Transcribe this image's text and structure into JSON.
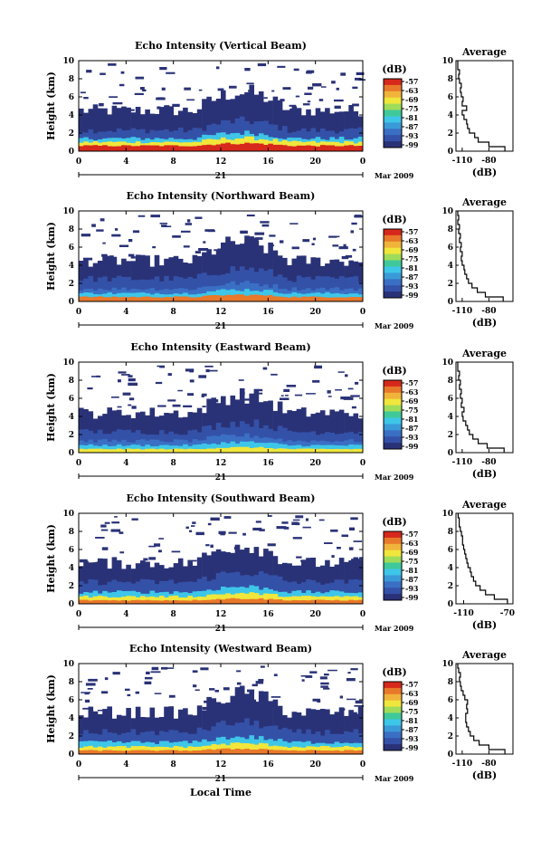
{
  "chart_data": [
    {
      "type": "heatmap",
      "title": "Echo Intensity (Vertical Beam)",
      "ylabel": "Height (km)",
      "xlabel": "",
      "x_ticks": [
        "0",
        "4",
        "8",
        "12",
        "16",
        "20",
        "0"
      ],
      "y_ticks": [
        "0",
        "2",
        "4",
        "6",
        "8",
        "10"
      ],
      "xlim": [
        0,
        24
      ],
      "ylim": [
        0,
        10
      ],
      "date_day": "21",
      "date_month": "Mar 2009",
      "colorbar": {
        "label": "(dB)",
        "ticks": [
          "-57",
          "-63",
          "-69",
          "-75",
          "-81",
          "-87",
          "-93",
          "-99"
        ]
      },
      "layers": [
        {
          "h_top": 0.6,
          "color": "#d7281c"
        },
        {
          "h_top": 1.0,
          "color": "#f0e63c"
        },
        {
          "h_top": 1.4,
          "color": "#3ec6e8"
        },
        {
          "h_top": 2.3,
          "color": "#3451a8"
        },
        {
          "h_top": 4.5,
          "color": "#2a3277"
        }
      ],
      "average": {
        "title": "Average",
        "xlabel": "(dB)",
        "xlim": [
          -117,
          -53
        ],
        "x_ticks": [
          "-110",
          "-80"
        ],
        "profile": [
          {
            "height": 0.0,
            "db": -62
          },
          {
            "height": 0.5,
            "db": -80
          },
          {
            "height": 1.0,
            "db": -92
          },
          {
            "height": 1.5,
            "db": -96
          },
          {
            "height": 2.0,
            "db": -102
          },
          {
            "height": 2.5,
            "db": -104
          },
          {
            "height": 3.0,
            "db": -105
          },
          {
            "height": 3.5,
            "db": -108
          },
          {
            "height": 4.0,
            "db": -110
          },
          {
            "height": 4.5,
            "db": -105
          },
          {
            "height": 5.0,
            "db": -110
          },
          {
            "height": 5.5,
            "db": -109
          },
          {
            "height": 6.0,
            "db": -111
          },
          {
            "height": 6.5,
            "db": -112
          },
          {
            "height": 7.0,
            "db": -111
          },
          {
            "height": 7.5,
            "db": -113
          },
          {
            "height": 8.0,
            "db": -114
          },
          {
            "height": 8.5,
            "db": -113
          },
          {
            "height": 9.0,
            "db": -115
          },
          {
            "height": 9.5,
            "db": -115
          }
        ]
      }
    },
    {
      "type": "heatmap",
      "title": "Echo Intensity (Northward Beam)",
      "ylabel": "Height (km)",
      "xlabel": "",
      "x_ticks": [
        "0",
        "4",
        "8",
        "12",
        "16",
        "20",
        "0"
      ],
      "y_ticks": [
        "0",
        "2",
        "4",
        "6",
        "8",
        "10"
      ],
      "xlim": [
        0,
        24
      ],
      "ylim": [
        0,
        10
      ],
      "date_day": "21",
      "date_month": "Mar 2009",
      "colorbar": {
        "label": "(dB)",
        "ticks": [
          "-57",
          "-63",
          "-69",
          "-75",
          "-81",
          "-87",
          "-93",
          "-99"
        ]
      },
      "layers": [
        {
          "h_top": 0.5,
          "color": "#e8782a"
        },
        {
          "h_top": 0.9,
          "color": "#3ec6e8"
        },
        {
          "h_top": 1.4,
          "color": "#3a6fc4"
        },
        {
          "h_top": 2.5,
          "color": "#3451a8"
        },
        {
          "h_top": 4.5,
          "color": "#2a3277"
        }
      ],
      "average": {
        "title": "Average",
        "xlabel": "(dB)",
        "xlim": [
          -117,
          -53
        ],
        "x_ticks": [
          "-110",
          "-80"
        ],
        "profile": [
          {
            "height": 0.0,
            "db": -64
          },
          {
            "height": 0.5,
            "db": -84
          },
          {
            "height": 1.0,
            "db": -93
          },
          {
            "height": 1.5,
            "db": -99
          },
          {
            "height": 2.0,
            "db": -103
          },
          {
            "height": 2.5,
            "db": -105
          },
          {
            "height": 3.0,
            "db": -107
          },
          {
            "height": 3.5,
            "db": -108
          },
          {
            "height": 4.0,
            "db": -110
          },
          {
            "height": 4.5,
            "db": -111
          },
          {
            "height": 5.0,
            "db": -110
          },
          {
            "height": 5.5,
            "db": -112
          },
          {
            "height": 6.0,
            "db": -111
          },
          {
            "height": 6.5,
            "db": -113
          },
          {
            "height": 7.0,
            "db": -112
          },
          {
            "height": 7.5,
            "db": -114
          },
          {
            "height": 8.0,
            "db": -113
          },
          {
            "height": 8.5,
            "db": -115
          },
          {
            "height": 9.0,
            "db": -114
          },
          {
            "height": 9.5,
            "db": -115
          }
        ]
      }
    },
    {
      "type": "heatmap",
      "title": "Echo Intensity (Eastward Beam)",
      "ylabel": "Height (km)",
      "xlabel": "",
      "x_ticks": [
        "0",
        "4",
        "8",
        "12",
        "16",
        "20",
        "0"
      ],
      "y_ticks": [
        "0",
        "2",
        "4",
        "6",
        "8",
        "10"
      ],
      "xlim": [
        0,
        24
      ],
      "ylim": [
        0,
        10
      ],
      "date_day": "21",
      "date_month": "Mar 2009",
      "colorbar": {
        "label": "(dB)",
        "ticks": [
          "-57",
          "-63",
          "-69",
          "-75",
          "-81",
          "-87",
          "-93",
          "-99"
        ]
      },
      "layers": [
        {
          "h_top": 0.4,
          "color": "#f0e63c"
        },
        {
          "h_top": 0.8,
          "color": "#3ec6e8"
        },
        {
          "h_top": 1.3,
          "color": "#3a6fc4"
        },
        {
          "h_top": 2.3,
          "color": "#3451a8"
        },
        {
          "h_top": 4.4,
          "color": "#2a3277"
        }
      ],
      "average": {
        "title": "Average",
        "xlabel": "(dB)",
        "xlim": [
          -117,
          -53
        ],
        "x_ticks": [
          "-110",
          "-80"
        ],
        "profile": [
          {
            "height": 0.0,
            "db": -63
          },
          {
            "height": 0.5,
            "db": -82
          },
          {
            "height": 1.0,
            "db": -92
          },
          {
            "height": 1.5,
            "db": -98
          },
          {
            "height": 2.0,
            "db": -102
          },
          {
            "height": 2.5,
            "db": -104
          },
          {
            "height": 3.0,
            "db": -106
          },
          {
            "height": 3.5,
            "db": -109
          },
          {
            "height": 4.0,
            "db": -110
          },
          {
            "height": 4.5,
            "db": -108
          },
          {
            "height": 5.0,
            "db": -111
          },
          {
            "height": 5.5,
            "db": -110
          },
          {
            "height": 6.0,
            "db": -112
          },
          {
            "height": 6.5,
            "db": -111
          },
          {
            "height": 7.0,
            "db": -113
          },
          {
            "height": 7.5,
            "db": -112
          },
          {
            "height": 8.0,
            "db": -114
          },
          {
            "height": 8.5,
            "db": -113
          },
          {
            "height": 9.0,
            "db": -115
          },
          {
            "height": 9.5,
            "db": -115
          }
        ]
      }
    },
    {
      "type": "heatmap",
      "title": "Echo Intensity (Southward Beam)",
      "ylabel": "Height (km)",
      "xlabel": "",
      "x_ticks": [
        "0",
        "4",
        "8",
        "12",
        "16",
        "20",
        "0"
      ],
      "y_ticks": [
        "0",
        "2",
        "4",
        "6",
        "8",
        "10"
      ],
      "xlim": [
        0,
        24
      ],
      "ylim": [
        0,
        10
      ],
      "date_day": "21",
      "date_month": "Mar 2009",
      "colorbar": {
        "label": "(dB)",
        "ticks": [
          "-57",
          "-63",
          "-69",
          "-75",
          "-81",
          "-87",
          "-93",
          "-99"
        ]
      },
      "layers": [
        {
          "h_top": 0.4,
          "color": "#e8782a"
        },
        {
          "h_top": 0.8,
          "color": "#f0e63c"
        },
        {
          "h_top": 1.3,
          "color": "#3ec6e8"
        },
        {
          "h_top": 2.4,
          "color": "#3451a8"
        },
        {
          "h_top": 4.5,
          "color": "#2a3277"
        }
      ],
      "average": {
        "title": "Average",
        "xlabel": "(dB)",
        "xlim": [
          -117,
          -65
        ],
        "x_ticks": [
          "-110",
          "-70"
        ],
        "profile": [
          {
            "height": 0.0,
            "db": -70
          },
          {
            "height": 0.5,
            "db": -82
          },
          {
            "height": 1.0,
            "db": -90
          },
          {
            "height": 1.5,
            "db": -95
          },
          {
            "height": 2.0,
            "db": -99
          },
          {
            "height": 2.5,
            "db": -101
          },
          {
            "height": 3.0,
            "db": -103
          },
          {
            "height": 3.5,
            "db": -104
          },
          {
            "height": 4.0,
            "db": -106
          },
          {
            "height": 4.5,
            "db": -107
          },
          {
            "height": 5.0,
            "db": -108
          },
          {
            "height": 5.5,
            "db": -109
          },
          {
            "height": 6.0,
            "db": -110
          },
          {
            "height": 6.5,
            "db": -111
          },
          {
            "height": 7.0,
            "db": -111
          },
          {
            "height": 7.5,
            "db": -112
          },
          {
            "height": 8.0,
            "db": -113
          },
          {
            "height": 8.5,
            "db": -114
          },
          {
            "height": 9.0,
            "db": -114
          },
          {
            "height": 9.5,
            "db": -115
          }
        ]
      }
    },
    {
      "type": "heatmap",
      "title": "Echo Intensity (Westward Beam)",
      "ylabel": "Height (km)",
      "xlabel": "Local Time",
      "x_ticks": [
        "0",
        "4",
        "8",
        "12",
        "16",
        "20",
        "0"
      ],
      "y_ticks": [
        "0",
        "2",
        "4",
        "6",
        "8",
        "10"
      ],
      "xlim": [
        0,
        24
      ],
      "ylim": [
        0,
        10
      ],
      "date_day": "21",
      "date_month": "Mar 2009",
      "colorbar": {
        "label": "(dB)",
        "ticks": [
          "-57",
          "-63",
          "-69",
          "-75",
          "-81",
          "-87",
          "-93",
          "-99"
        ]
      },
      "layers": [
        {
          "h_top": 0.4,
          "color": "#e8782a"
        },
        {
          "h_top": 0.8,
          "color": "#f0e63c"
        },
        {
          "h_top": 1.3,
          "color": "#3ec6e8"
        },
        {
          "h_top": 2.4,
          "color": "#3451a8"
        },
        {
          "h_top": 4.6,
          "color": "#2a3277"
        }
      ],
      "average": {
        "title": "Average",
        "xlabel": "(dB)",
        "xlim": [
          -117,
          -53
        ],
        "x_ticks": [
          "-110",
          "-80"
        ],
        "profile": [
          {
            "height": 0.0,
            "db": -62
          },
          {
            "height": 0.5,
            "db": -80
          },
          {
            "height": 1.0,
            "db": -91
          },
          {
            "height": 1.5,
            "db": -97
          },
          {
            "height": 2.0,
            "db": -101
          },
          {
            "height": 2.5,
            "db": -103
          },
          {
            "height": 3.0,
            "db": -105
          },
          {
            "height": 3.5,
            "db": -106
          },
          {
            "height": 4.0,
            "db": -106
          },
          {
            "height": 4.5,
            "db": -104
          },
          {
            "height": 5.0,
            "db": -105
          },
          {
            "height": 5.5,
            "db": -104
          },
          {
            "height": 6.0,
            "db": -107
          },
          {
            "height": 6.5,
            "db": -109
          },
          {
            "height": 7.0,
            "db": -111
          },
          {
            "height": 7.5,
            "db": -112
          },
          {
            "height": 8.0,
            "db": -113
          },
          {
            "height": 8.5,
            "db": -112
          },
          {
            "height": 9.0,
            "db": -114
          },
          {
            "height": 9.5,
            "db": -115
          }
        ]
      }
    }
  ],
  "colorbar_colors": [
    "#d7281c",
    "#e8782a",
    "#f0b43a",
    "#f0e63c",
    "#9fdc5a",
    "#3fc99a",
    "#3ec6e8",
    "#3a9ad8",
    "#3a6fc4",
    "#3451a8",
    "#2a3277"
  ],
  "intensity_color": "#2a3277"
}
